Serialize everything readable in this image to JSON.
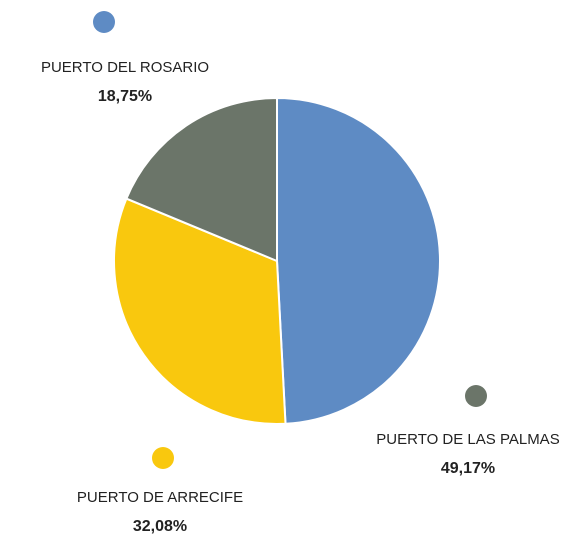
{
  "chart_data": {
    "type": "pie",
    "categories": [
      "PUERTO DE LAS PALMAS",
      "PUERTO DE ARRECIFE",
      "PUERTO DEL ROSARIO"
    ],
    "values": [
      49.17,
      32.08,
      18.75
    ],
    "value_labels": [
      "49,17%",
      "32,08%",
      "18,75%"
    ],
    "colors": [
      "#5e8bc4",
      "#f9c80e",
      "#6b7569"
    ]
  }
}
